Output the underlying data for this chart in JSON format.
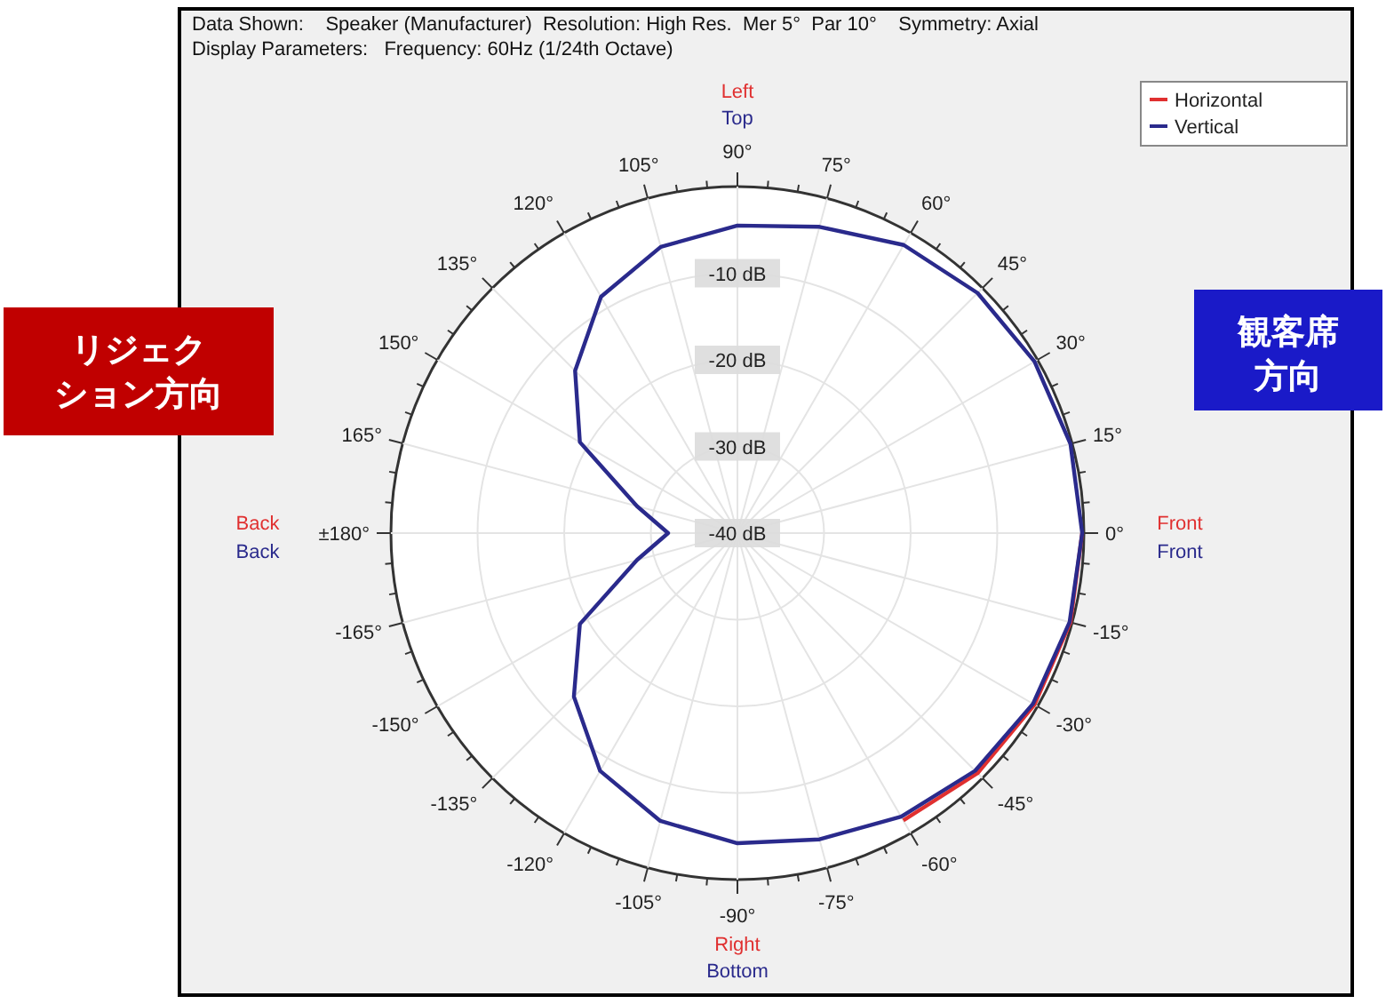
{
  "chart_data": {
    "type": "radar",
    "title": "Data Shown:    Speaker (Manufacturer)  Resolution: High Res.  Mer 5°  Par 10°    Symmetry: Axial",
    "subtitle": "Display Parameters:   Frequency: 60Hz (1/24th Octave)",
    "categories": [
      "90°",
      "75°",
      "60°",
      "45°",
      "30°",
      "15°",
      "0°",
      "-15°",
      "-30°",
      "-45°",
      "-60°",
      "-75°",
      "-90°",
      "-105°",
      "-120°",
      "-135°",
      "-150°",
      "-165°",
      "±180°",
      "165°",
      "150°",
      "135°",
      "120°",
      "105°"
    ],
    "series": [
      {
        "name": "Horizontal",
        "color": "#e03030",
        "values": [
          null,
          null,
          null,
          null,
          null,
          null,
          -0.2,
          -0.2,
          -0.4,
          -0.8,
          -1.7,
          null,
          null,
          null,
          null,
          null,
          null,
          null,
          null,
          null,
          null,
          null,
          null,
          null
        ]
      },
      {
        "name": "Vertical",
        "color": "#2a2a8c",
        "values": [
          -4.5,
          -3.4,
          -1.6,
          -0.8,
          -0.4,
          -0.2,
          -0.2,
          -0.3,
          -0.6,
          -1.2,
          -2.2,
          -3.4,
          -4.2,
          -5.6,
          -8.3,
          -13.3,
          -19,
          -28,
          -32,
          -28,
          -19,
          -13.5,
          -8.5,
          -5.8
        ]
      }
    ],
    "ylim": [
      -40,
      0
    ],
    "yticks": [
      {
        "value": -40,
        "label": "-40 dB"
      },
      {
        "value": -30,
        "label": "-30 dB"
      },
      {
        "value": -20,
        "label": "-20 dB"
      },
      {
        "value": -10,
        "label": "-10 dB"
      }
    ],
    "grid": true,
    "legend": "top right",
    "annotations": [
      "Left",
      "Top",
      "Right",
      "Bottom",
      "Back",
      "Back",
      "Front",
      "Front",
      "リジェクション方向",
      "観客席方向"
    ]
  }
}
